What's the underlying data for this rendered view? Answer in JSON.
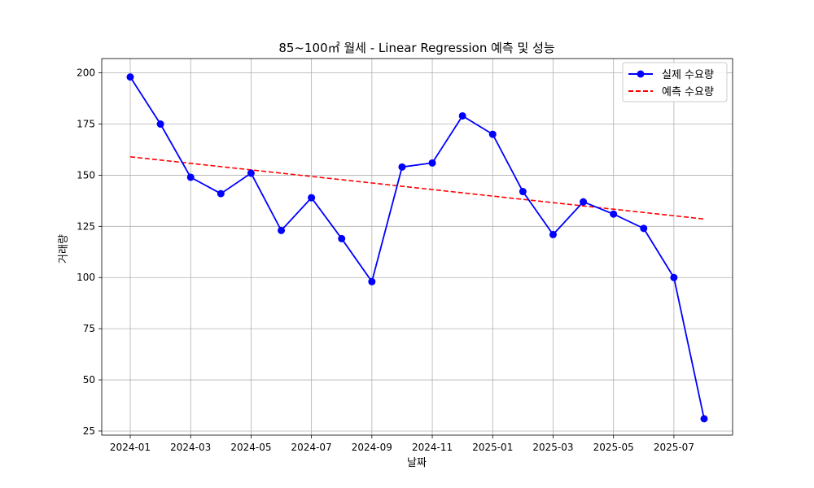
{
  "chart_data": {
    "type": "line",
    "title": "85~100㎡ 월세 - Linear Regression 예측 및 성능",
    "xlabel": "날짜",
    "ylabel": "거래량",
    "x": [
      "2024-01",
      "2024-02",
      "2024-03",
      "2024-04",
      "2024-05",
      "2024-06",
      "2024-07",
      "2024-08",
      "2024-09",
      "2024-10",
      "2024-11",
      "2024-12",
      "2025-01",
      "2025-02",
      "2025-03",
      "2025-04",
      "2025-05",
      "2025-06",
      "2025-07",
      "2025-08"
    ],
    "x_ticks": [
      "2024-01",
      "2024-03",
      "2024-05",
      "2024-07",
      "2024-09",
      "2024-11",
      "2025-01",
      "2025-03",
      "2025-05",
      "2025-07"
    ],
    "y_ticks": [
      25,
      50,
      75,
      100,
      125,
      150,
      175,
      200
    ],
    "ylim": [
      23,
      207
    ],
    "grid": true,
    "legend_position": "top-right",
    "series": [
      {
        "name": "실제 수요량",
        "color": "#0000ff",
        "style": "solid-with-markers",
        "values": [
          198,
          175,
          149,
          141,
          151,
          123,
          139,
          119,
          98,
          154,
          156,
          179,
          170,
          142,
          121,
          137,
          131,
          124,
          100,
          31
        ]
      },
      {
        "name": "예측 수요량",
        "color": "#ff0000",
        "style": "dashed",
        "values": [
          159.0,
          157.4,
          155.8,
          154.2,
          152.6,
          151.0,
          149.4,
          147.8,
          146.2,
          144.6,
          143.0,
          141.4,
          139.8,
          138.2,
          136.6,
          135.0,
          133.4,
          131.8,
          130.2,
          128.6
        ]
      }
    ]
  }
}
